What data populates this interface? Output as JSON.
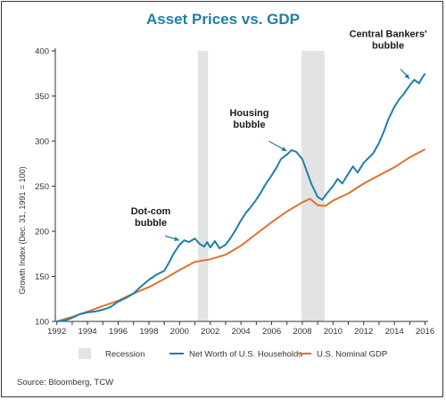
{
  "chart_data": {
    "type": "line",
    "title": "Asset Prices vs. GDP",
    "ylabel": "Growth Index (Dec. 31, 1991 = 100)",
    "xlabel": "",
    "xlim": [
      1991.9,
      2016.2
    ],
    "ylim": [
      100,
      400
    ],
    "x_ticks": [
      "1992",
      "1994",
      "1996",
      "1998",
      "2000",
      "2002",
      "2004",
      "2006",
      "2008",
      "2010",
      "2012",
      "2014",
      "2016"
    ],
    "y_ticks": [
      "100",
      "150",
      "200",
      "250",
      "300",
      "350",
      "400"
    ],
    "recessions": [
      [
        2001.2,
        2001.85
      ],
      [
        2007.95,
        2009.45
      ]
    ],
    "series": [
      {
        "name": "Net Worth of U.S. Households",
        "color": "#1f7fa6",
        "points": [
          [
            1992.0,
            100
          ],
          [
            1992.5,
            101
          ],
          [
            1993.0,
            104
          ],
          [
            1993.5,
            108
          ],
          [
            1994.0,
            110
          ],
          [
            1994.5,
            111
          ],
          [
            1995.0,
            113
          ],
          [
            1995.5,
            116
          ],
          [
            1996.0,
            122
          ],
          [
            1996.5,
            126
          ],
          [
            1997.0,
            131
          ],
          [
            1997.5,
            139
          ],
          [
            1998.0,
            146
          ],
          [
            1998.5,
            152
          ],
          [
            1999.0,
            156
          ],
          [
            1999.3,
            165
          ],
          [
            1999.6,
            175
          ],
          [
            2000.0,
            185
          ],
          [
            2000.3,
            190
          ],
          [
            2000.6,
            188
          ],
          [
            2001.0,
            192
          ],
          [
            2001.3,
            186
          ],
          [
            2001.6,
            183
          ],
          [
            2001.8,
            188
          ],
          [
            2002.0,
            182
          ],
          [
            2002.3,
            189
          ],
          [
            2002.6,
            181
          ],
          [
            2003.0,
            185
          ],
          [
            2003.3,
            192
          ],
          [
            2003.6,
            200
          ],
          [
            2004.0,
            212
          ],
          [
            2004.3,
            220
          ],
          [
            2004.6,
            226
          ],
          [
            2005.0,
            235
          ],
          [
            2005.3,
            243
          ],
          [
            2005.6,
            252
          ],
          [
            2006.0,
            262
          ],
          [
            2006.3,
            270
          ],
          [
            2006.6,
            280
          ],
          [
            2007.0,
            285
          ],
          [
            2007.3,
            290
          ],
          [
            2007.6,
            288
          ],
          [
            2008.0,
            280
          ],
          [
            2008.3,
            266
          ],
          [
            2008.6,
            252
          ],
          [
            2009.0,
            238
          ],
          [
            2009.3,
            235
          ],
          [
            2009.6,
            242
          ],
          [
            2010.0,
            250
          ],
          [
            2010.3,
            258
          ],
          [
            2010.6,
            253
          ],
          [
            2011.0,
            264
          ],
          [
            2011.3,
            272
          ],
          [
            2011.6,
            265
          ],
          [
            2012.0,
            276
          ],
          [
            2012.3,
            281
          ],
          [
            2012.6,
            286
          ],
          [
            2013.0,
            298
          ],
          [
            2013.3,
            310
          ],
          [
            2013.6,
            324
          ],
          [
            2014.0,
            338
          ],
          [
            2014.3,
            346
          ],
          [
            2014.6,
            352
          ],
          [
            2015.0,
            362
          ],
          [
            2015.3,
            368
          ],
          [
            2015.6,
            364
          ],
          [
            2015.8,
            370
          ],
          [
            2016.0,
            375
          ]
        ]
      },
      {
        "name": "U.S. Nominal GDP",
        "color": "#e0722a",
        "points": [
          [
            1992.0,
            100
          ],
          [
            1993.0,
            105
          ],
          [
            1994.0,
            111
          ],
          [
            1995.0,
            117
          ],
          [
            1996.0,
            123
          ],
          [
            1997.0,
            131
          ],
          [
            1998.0,
            138
          ],
          [
            1999.0,
            147
          ],
          [
            2000.0,
            157
          ],
          [
            2001.0,
            166
          ],
          [
            2002.0,
            169
          ],
          [
            2003.0,
            174
          ],
          [
            2004.0,
            184
          ],
          [
            2005.0,
            197
          ],
          [
            2006.0,
            210
          ],
          [
            2007.0,
            222
          ],
          [
            2008.0,
            232
          ],
          [
            2008.5,
            236
          ],
          [
            2009.0,
            229
          ],
          [
            2009.5,
            228
          ],
          [
            2010.0,
            234
          ],
          [
            2011.0,
            242
          ],
          [
            2012.0,
            253
          ],
          [
            2013.0,
            262
          ],
          [
            2014.0,
            271
          ],
          [
            2015.0,
            282
          ],
          [
            2016.0,
            291
          ]
        ]
      }
    ],
    "annotations": [
      {
        "lines": [
          "Dot-com",
          "bubble"
        ],
        "target": [
          2000.1,
          187
        ]
      },
      {
        "lines": [
          "Housing",
          "bubble"
        ],
        "target": [
          2007.1,
          286
        ]
      },
      {
        "lines": [
          "Central Bankers'",
          "bubble"
        ],
        "target": [
          2015.1,
          366
        ]
      }
    ],
    "legend": {
      "position": "bottom",
      "items": [
        {
          "label": "Recession",
          "kind": "box",
          "color": "#e3e3e3"
        },
        {
          "label": "Net Worth of U.S. Households",
          "kind": "line",
          "color": "#1f7fa6"
        },
        {
          "label": "U.S. Nominal GDP",
          "kind": "line",
          "color": "#e0722a"
        }
      ]
    },
    "grid": false,
    "source": "Source: Bloomberg, TCW"
  }
}
